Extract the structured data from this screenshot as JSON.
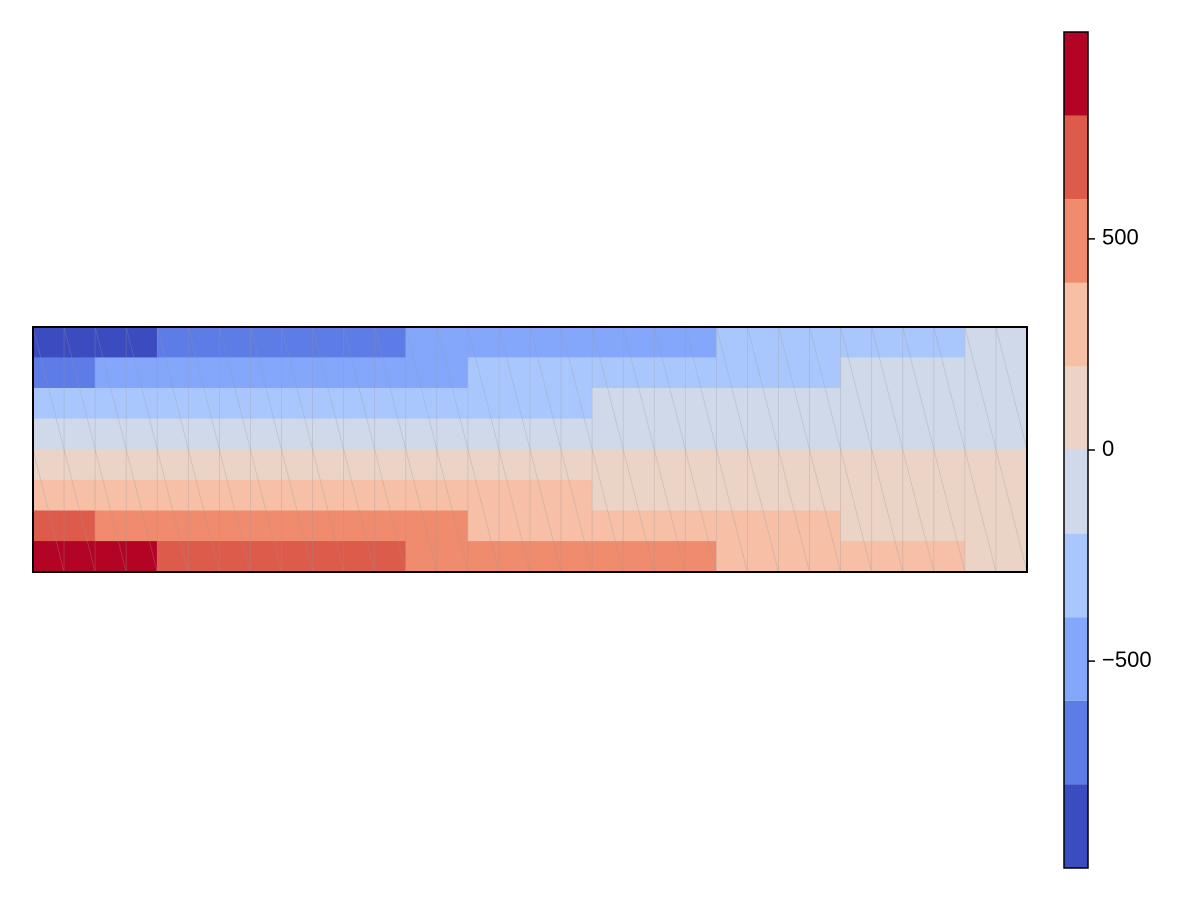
{
  "chart_data": {
    "type": "contourf",
    "levels": [
      -990,
      -792,
      -594,
      -396,
      -198,
      0,
      198,
      396,
      594,
      792,
      990
    ],
    "colors": [
      "#3b4cc0",
      "#5d7ce6",
      "#84a7fc",
      "#aac7fd",
      "#cfd9ea",
      "#ebd3c6",
      "#f6bfa6",
      "#f08b6e",
      "#dd5b4b",
      "#b40426"
    ],
    "clim": [
      -990,
      990
    ],
    "cticks": [
      {
        "value": -500,
        "label": "−500"
      },
      0,
      500
    ],
    "z": [
      [
        -852,
        -807,
        -761,
        -716,
        -670,
        -625,
        -579,
        -534,
        -488,
        -443,
        -397,
        -352,
        -306,
        -261,
        -215,
        -170
      ],
      [
        -609,
        -576,
        -544,
        -511,
        -479,
        -446,
        -414,
        -381,
        -349,
        -316,
        -284,
        -251,
        -219,
        -186,
        -154,
        -121
      ],
      [
        -365,
        -346,
        -326,
        -307,
        -287,
        -268,
        -248,
        -229,
        -209,
        -190,
        -170,
        -151,
        -131,
        -112,
        -92,
        -73
      ],
      [
        -122,
        -115,
        -109,
        -102,
        -96,
        -89,
        -83,
        -76,
        -70,
        -63,
        -57,
        -50,
        -44,
        -37,
        -31,
        -24
      ],
      [
        122,
        115,
        109,
        102,
        96,
        89,
        83,
        76,
        70,
        63,
        57,
        50,
        44,
        37,
        31,
        24
      ],
      [
        365,
        346,
        326,
        307,
        287,
        268,
        248,
        229,
        209,
        190,
        170,
        151,
        131,
        112,
        92,
        73
      ],
      [
        609,
        576,
        544,
        511,
        479,
        446,
        414,
        381,
        349,
        316,
        284,
        251,
        219,
        186,
        154,
        121
      ],
      [
        852,
        807,
        761,
        716,
        670,
        625,
        579,
        534,
        488,
        443,
        397,
        352,
        306,
        261,
        215,
        170
      ]
    ]
  }
}
